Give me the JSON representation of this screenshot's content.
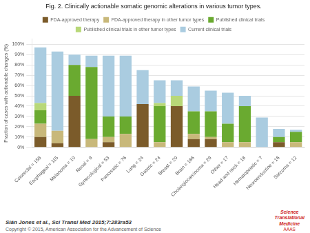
{
  "chart_data": {
    "type": "bar",
    "stacked": true,
    "title": "Fig. 2. Clinically actionable somatic genomic alterations in various tumor types.",
    "ylabel": "Fraction of cases with actionable changes (%)",
    "categories": [
      "Colorectal = 158",
      "Esophageal = 115",
      "Melanoma = 10",
      "Renal = 9",
      "Gynecological = 53",
      "Pancreatic = 76",
      "Lung = 24",
      "Gastric = 24",
      "Breast = 20",
      "Brain = 166",
      "Cholangiocarcinoma = 29",
      "Other = 17",
      "Head and neck = 18",
      "Hematopoietic = 7",
      "Neuroendocrine = 16",
      "Sarcoma = 12"
    ],
    "series": [
      {
        "name": "FDA-approved therapy",
        "color": "#7B5B2A",
        "values": [
          10,
          4,
          50,
          0,
          5,
          0,
          42,
          0,
          40,
          8,
          8,
          0,
          0,
          0,
          5,
          0
        ]
      },
      {
        "name": "FDA-approved therapy in other tumor types",
        "color": "#C8B87A",
        "values": [
          13,
          12,
          0,
          8,
          5,
          13,
          0,
          5,
          0,
          5,
          2,
          5,
          5,
          0,
          0,
          5
        ]
      },
      {
        "name": "Published clinical trials",
        "color": "#6AAA30",
        "values": [
          13,
          0,
          30,
          70,
          20,
          17,
          0,
          35,
          0,
          22,
          25,
          18,
          35,
          0,
          5,
          10
        ]
      },
      {
        "name": "Published clinical trials in other tumor types",
        "color": "#B8D878",
        "values": [
          7,
          0,
          0,
          0,
          0,
          0,
          0,
          3,
          10,
          0,
          0,
          0,
          0,
          0,
          0,
          0
        ]
      },
      {
        "name": "Current clinical trials",
        "color": "#AACCE0",
        "values": [
          54,
          77,
          10,
          11,
          59,
          59,
          33,
          22,
          15,
          24,
          20,
          30,
          10,
          29,
          8,
          2
        ]
      }
    ],
    "ylim": [
      0,
      105
    ],
    "yticks": [
      {
        "value": 0,
        "label": "0%"
      },
      {
        "value": 10,
        "label": "10%"
      },
      {
        "value": 20,
        "label": "20%"
      },
      {
        "value": 30,
        "label": "30%"
      },
      {
        "value": 40,
        "label": "40%"
      },
      {
        "value": 50,
        "label": "50%"
      },
      {
        "value": 60,
        "label": "60%"
      },
      {
        "value": 70,
        "label": "70%"
      },
      {
        "value": 80,
        "label": "80%"
      },
      {
        "value": 90,
        "label": "90%"
      },
      {
        "value": 100,
        "label": "100%"
      }
    ],
    "grid": true,
    "legend": "top",
    "annotations": [
      "Siân Jones et al., Sci Transl Med 2015;7:283ra53",
      "Copyright © 2015, American Association for the Advancement of Science",
      "Science\nTranslational\nMedicine",
      "AAAS"
    ]
  }
}
